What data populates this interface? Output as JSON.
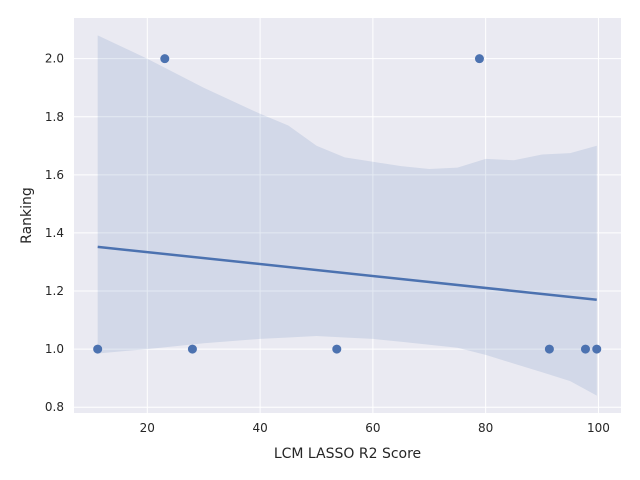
{
  "chart_data": {
    "type": "scatter",
    "xlabel": "LCM LASSO R2 Score",
    "ylabel": "Ranking",
    "xlim": [
      7,
      104
    ],
    "ylim": [
      0.78,
      2.14
    ],
    "xticks": [
      20,
      40,
      60,
      80,
      100
    ],
    "yticks": [
      0.8,
      1.0,
      1.2,
      1.4,
      1.6,
      1.8,
      2.0
    ],
    "xtick_labels": [
      "20",
      "40",
      "60",
      "80",
      "100"
    ],
    "ytick_labels": [
      "0.8",
      "1.0",
      "1.2",
      "1.4",
      "1.6",
      "1.8",
      "2.0"
    ],
    "grid": true,
    "points": [
      {
        "x": 11.2,
        "y": 1.0
      },
      {
        "x": 23.1,
        "y": 2.0
      },
      {
        "x": 28.0,
        "y": 1.0
      },
      {
        "x": 53.6,
        "y": 1.0
      },
      {
        "x": 78.9,
        "y": 2.0
      },
      {
        "x": 91.3,
        "y": 1.0
      },
      {
        "x": 97.7,
        "y": 1.0
      },
      {
        "x": 99.7,
        "y": 1.0
      }
    ],
    "regression_line": {
      "x": [
        11.2,
        99.7
      ],
      "y": [
        1.352,
        1.17
      ]
    },
    "confidence_band": {
      "x": [
        11.2,
        20,
        30,
        40,
        45,
        50,
        55,
        60,
        65,
        70,
        75,
        80,
        85,
        90,
        95,
        99.7
      ],
      "upper": [
        2.08,
        2.0,
        1.9,
        1.81,
        1.77,
        1.7,
        1.66,
        1.645,
        1.63,
        1.62,
        1.625,
        1.655,
        1.65,
        1.67,
        1.675,
        1.7
      ],
      "lower": [
        0.985,
        1.0,
        1.02,
        1.035,
        1.04,
        1.045,
        1.04,
        1.035,
        1.025,
        1.015,
        1.005,
        0.98,
        0.95,
        0.92,
        0.89,
        0.84
      ]
    },
    "colors": {
      "background": "#eaeaf2",
      "grid": "#ffffff",
      "marker": "#4c72b0",
      "line": "#4c72b0",
      "band": "#4c72b0"
    }
  }
}
